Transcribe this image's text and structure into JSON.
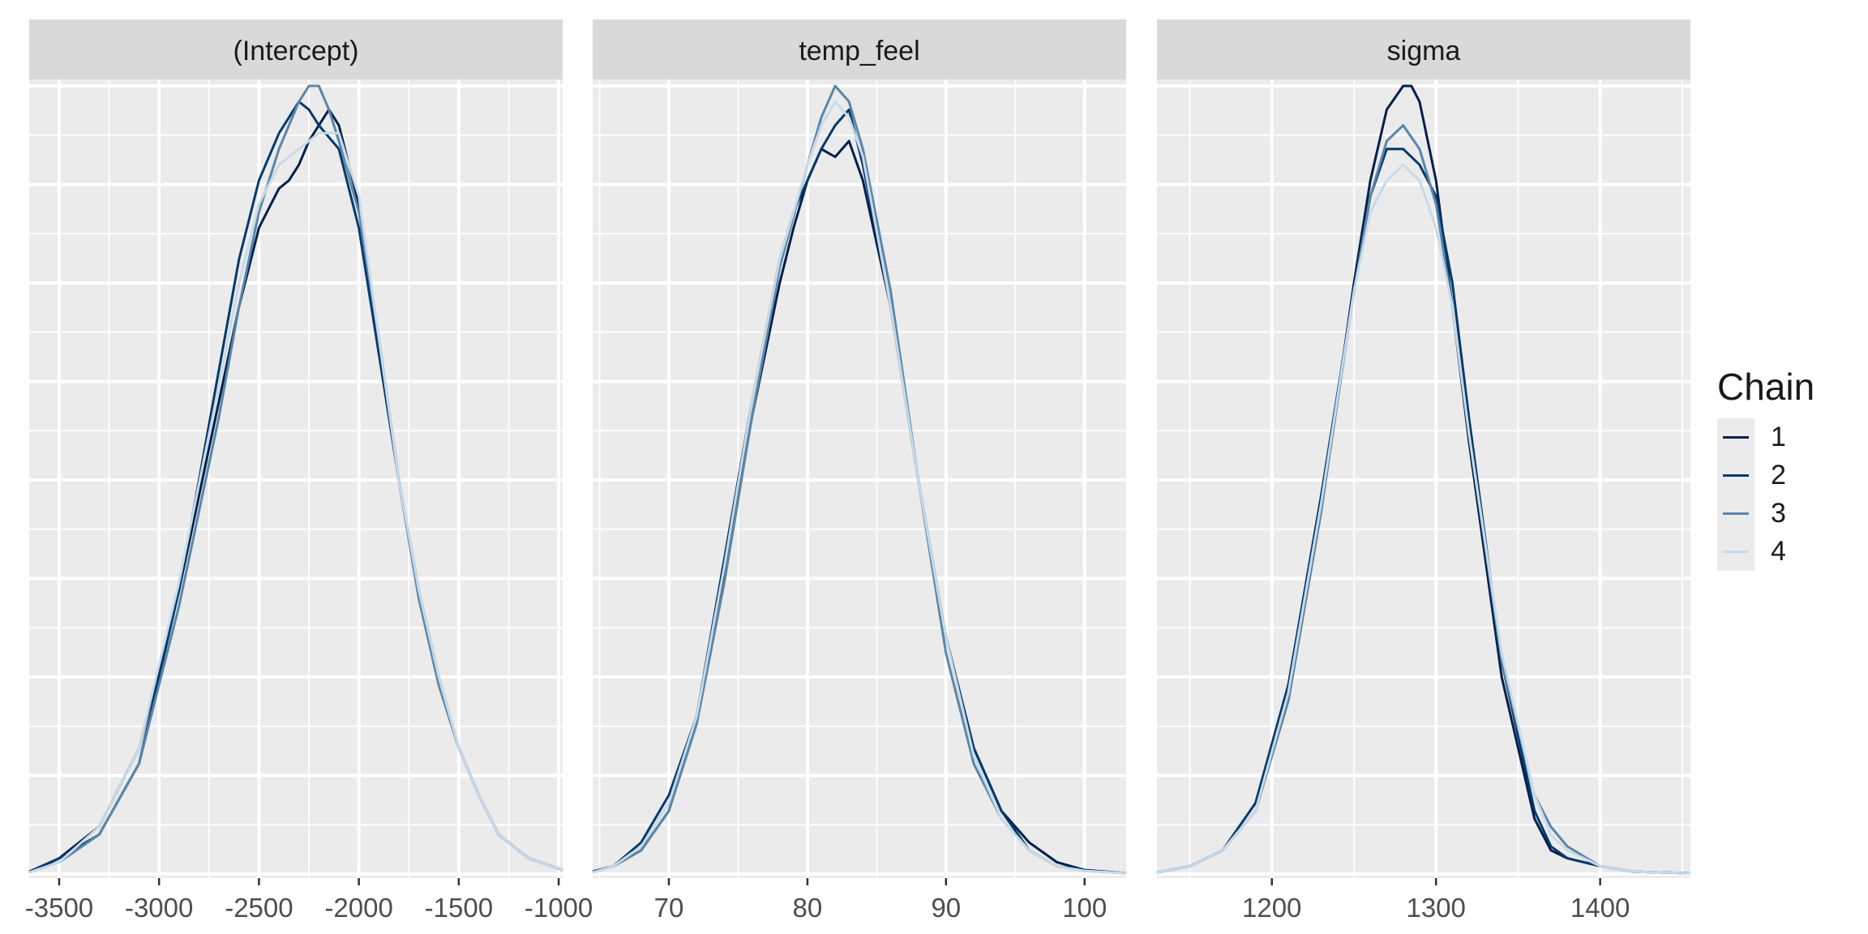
{
  "legend": {
    "title": "Chain",
    "entries": [
      {
        "label": "1",
        "color": "#011f4b"
      },
      {
        "label": "2",
        "color": "#03396c"
      },
      {
        "label": "3",
        "color": "#5a86a8"
      },
      {
        "label": "4",
        "color": "#c8dae8"
      }
    ]
  },
  "colors": {
    "panel_background": "#ebebeb",
    "strip_background": "#d9d9d9",
    "grid": "#ffffff",
    "text": "#1a1a1a",
    "axis_text": "#4d4d4d"
  },
  "chart_data": [
    {
      "type": "line",
      "strip_title": "(Intercept)",
      "xlim": [
        -3650,
        -980
      ],
      "x_ticks": [
        -3500,
        -3000,
        -2500,
        -2000,
        -1500,
        -1000
      ],
      "x_tick_labels": [
        "-3500",
        "-3000",
        "-2500",
        "-2000",
        "-1500",
        "-1000"
      ],
      "grid": true,
      "series": [
        {
          "x": [
            -3650,
            -3500,
            -3300,
            -3100,
            -2900,
            -2700,
            -2600,
            -2500,
            -2400,
            -2350,
            -2300,
            -2250,
            -2200,
            -2150,
            -2100,
            -2000,
            -1900,
            -1800,
            -1700,
            -1600,
            -1500,
            -1400,
            -1300,
            -1150,
            -980
          ],
          "y": [
            0.002,
            0.02,
            0.06,
            0.16,
            0.36,
            0.6,
            0.72,
            0.82,
            0.87,
            0.88,
            0.9,
            0.93,
            0.95,
            0.97,
            0.95,
            0.85,
            0.68,
            0.5,
            0.35,
            0.24,
            0.16,
            0.1,
            0.05,
            0.02,
            0.005
          ]
        },
        {
          "x": [
            -3650,
            -3500,
            -3300,
            -3100,
            -2900,
            -2700,
            -2600,
            -2500,
            -2400,
            -2300,
            -2250,
            -2200,
            -2100,
            -2000,
            -1900,
            -1800,
            -1700,
            -1600,
            -1500,
            -1400,
            -1300,
            -1150,
            -980
          ],
          "y": [
            0.003,
            0.02,
            0.05,
            0.14,
            0.36,
            0.64,
            0.78,
            0.88,
            0.94,
            0.98,
            0.97,
            0.95,
            0.92,
            0.82,
            0.66,
            0.5,
            0.36,
            0.25,
            0.16,
            0.1,
            0.05,
            0.02,
            0.005
          ]
        },
        {
          "x": [
            -3650,
            -3500,
            -3300,
            -3100,
            -2900,
            -2700,
            -2600,
            -2500,
            -2400,
            -2300,
            -2250,
            -2200,
            -2150,
            -2100,
            -2000,
            -1900,
            -1800,
            -1700,
            -1600,
            -1500,
            -1400,
            -1300,
            -1150,
            -980
          ],
          "y": [
            0.002,
            0.015,
            0.05,
            0.14,
            0.34,
            0.58,
            0.72,
            0.84,
            0.92,
            0.98,
            1.0,
            1.0,
            0.97,
            0.93,
            0.84,
            0.68,
            0.5,
            0.35,
            0.24,
            0.16,
            0.1,
            0.05,
            0.02,
            0.005
          ]
        },
        {
          "x": [
            -3650,
            -3500,
            -3300,
            -3100,
            -2900,
            -2700,
            -2600,
            -2500,
            -2400,
            -2300,
            -2200,
            -2100,
            -2000,
            -1900,
            -1800,
            -1700,
            -1600,
            -1500,
            -1400,
            -1300,
            -1150,
            -980
          ],
          "y": [
            0.002,
            0.015,
            0.06,
            0.16,
            0.37,
            0.62,
            0.75,
            0.85,
            0.9,
            0.92,
            0.94,
            0.94,
            0.86,
            0.68,
            0.5,
            0.36,
            0.25,
            0.16,
            0.1,
            0.05,
            0.02,
            0.005
          ]
        }
      ]
    },
    {
      "type": "line",
      "strip_title": "temp_feel",
      "xlim": [
        64.5,
        103
      ],
      "x_ticks": [
        70,
        80,
        90,
        100
      ],
      "x_tick_labels": [
        "70",
        "80",
        "90",
        "100"
      ],
      "grid": true,
      "series": [
        {
          "x": [
            64.5,
            66,
            68,
            70,
            72,
            74,
            76,
            78,
            79,
            80,
            81,
            82,
            83,
            84,
            86,
            88,
            90,
            92,
            94,
            96,
            98,
            100,
            103
          ],
          "y": [
            0.003,
            0.01,
            0.03,
            0.08,
            0.2,
            0.38,
            0.58,
            0.75,
            0.82,
            0.88,
            0.92,
            0.91,
            0.93,
            0.88,
            0.72,
            0.5,
            0.3,
            0.16,
            0.08,
            0.04,
            0.015,
            0.005,
            0.001
          ]
        },
        {
          "x": [
            64.5,
            66,
            68,
            70,
            72,
            74,
            76,
            78,
            79,
            80,
            81,
            82,
            83,
            84,
            86,
            88,
            90,
            92,
            94,
            96,
            98,
            100,
            103
          ],
          "y": [
            0.003,
            0.01,
            0.04,
            0.1,
            0.2,
            0.4,
            0.6,
            0.78,
            0.84,
            0.88,
            0.92,
            0.95,
            0.97,
            0.9,
            0.72,
            0.5,
            0.3,
            0.16,
            0.08,
            0.03,
            0.01,
            0.005,
            0.001
          ]
        },
        {
          "x": [
            64.5,
            66,
            68,
            70,
            72,
            74,
            76,
            78,
            80,
            81,
            82,
            83,
            84,
            86,
            88,
            90,
            92,
            94,
            96,
            98,
            100,
            103
          ],
          "y": [
            0.002,
            0.01,
            0.03,
            0.08,
            0.19,
            0.37,
            0.58,
            0.77,
            0.9,
            0.96,
            1.0,
            0.98,
            0.92,
            0.74,
            0.5,
            0.28,
            0.14,
            0.07,
            0.03,
            0.01,
            0.004,
            0.001
          ]
        },
        {
          "x": [
            64.5,
            66,
            68,
            70,
            72,
            74,
            76,
            78,
            80,
            81,
            82,
            83,
            84,
            86,
            88,
            90,
            92,
            94,
            96,
            98,
            100,
            103
          ],
          "y": [
            0.002,
            0.01,
            0.035,
            0.09,
            0.2,
            0.39,
            0.6,
            0.78,
            0.9,
            0.95,
            0.98,
            0.96,
            0.91,
            0.72,
            0.5,
            0.3,
            0.15,
            0.07,
            0.03,
            0.01,
            0.004,
            0.001
          ]
        }
      ]
    },
    {
      "type": "line",
      "strip_title": "sigma",
      "xlim": [
        1130,
        1455
      ],
      "x_ticks": [
        1200,
        1300,
        1400
      ],
      "x_tick_labels": [
        "1200",
        "1300",
        "1400"
      ],
      "grid": true,
      "series": [
        {
          "x": [
            1130,
            1150,
            1170,
            1190,
            1210,
            1230,
            1250,
            1260,
            1270,
            1280,
            1285,
            1290,
            1300,
            1310,
            1320,
            1340,
            1360,
            1370,
            1380,
            1400,
            1420,
            1455
          ],
          "y": [
            0.002,
            0.01,
            0.03,
            0.08,
            0.22,
            0.46,
            0.75,
            0.88,
            0.97,
            1.0,
            1.0,
            0.98,
            0.88,
            0.72,
            0.55,
            0.25,
            0.07,
            0.03,
            0.02,
            0.01,
            0.003,
            0.001
          ]
        },
        {
          "x": [
            1130,
            1150,
            1170,
            1190,
            1210,
            1230,
            1250,
            1260,
            1270,
            1280,
            1290,
            1300,
            1310,
            1320,
            1340,
            1360,
            1370,
            1380,
            1400,
            1420,
            1455
          ],
          "y": [
            0.002,
            0.01,
            0.03,
            0.09,
            0.24,
            0.48,
            0.74,
            0.86,
            0.92,
            0.92,
            0.9,
            0.86,
            0.75,
            0.58,
            0.27,
            0.08,
            0.035,
            0.02,
            0.01,
            0.003,
            0.001
          ]
        },
        {
          "x": [
            1130,
            1150,
            1170,
            1190,
            1210,
            1230,
            1250,
            1260,
            1270,
            1280,
            1290,
            1300,
            1310,
            1320,
            1340,
            1360,
            1370,
            1380,
            1400,
            1420,
            1455
          ],
          "y": [
            0.002,
            0.01,
            0.03,
            0.08,
            0.22,
            0.46,
            0.74,
            0.86,
            0.93,
            0.95,
            0.92,
            0.85,
            0.72,
            0.56,
            0.27,
            0.1,
            0.06,
            0.035,
            0.01,
            0.003,
            0.001
          ]
        },
        {
          "x": [
            1130,
            1150,
            1170,
            1190,
            1210,
            1230,
            1250,
            1260,
            1270,
            1280,
            1290,
            1300,
            1310,
            1320,
            1340,
            1360,
            1370,
            1380,
            1400,
            1420,
            1455
          ],
          "y": [
            0.002,
            0.01,
            0.03,
            0.08,
            0.23,
            0.47,
            0.74,
            0.84,
            0.88,
            0.9,
            0.88,
            0.82,
            0.72,
            0.56,
            0.28,
            0.1,
            0.05,
            0.03,
            0.01,
            0.003,
            0.001
          ]
        }
      ]
    }
  ]
}
